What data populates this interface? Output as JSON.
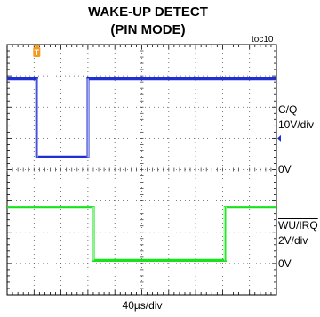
{
  "title_line1": "WAKE-UP DETECT",
  "title_line2": "(PIN MODE)",
  "figure_tag": "toc10",
  "chart_data": {
    "type": "line",
    "title": "WAKE-UP DETECT (PIN MODE)",
    "xlabel": "40µs/div",
    "x_unit": "div",
    "xlim": [
      0,
      10
    ],
    "ylim": [
      0,
      8
    ],
    "grid": true,
    "trigger_marker": "T",
    "series": [
      {
        "name": "C/Q",
        "scale": "10V/div",
        "zero_label": "0V",
        "zero_level_div": 4.4,
        "color": "#1f2fd1",
        "points": [
          [
            0,
            6.9
          ],
          [
            1.1,
            6.9
          ],
          [
            1.1,
            4.4
          ],
          [
            3.0,
            4.4
          ],
          [
            3.0,
            6.9
          ],
          [
            10,
            6.9
          ]
        ]
      },
      {
        "name": "WU/IRQ",
        "name_overline": true,
        "scale": "2V/div",
        "zero_label": "0V",
        "zero_level_div": 1.1,
        "color": "#17e21c",
        "points": [
          [
            0,
            2.8
          ],
          [
            3.2,
            2.8
          ],
          [
            3.2,
            1.1
          ],
          [
            8.1,
            1.1
          ],
          [
            8.1,
            2.8
          ],
          [
            10,
            2.8
          ]
        ]
      }
    ],
    "colors": {
      "trigger": "#f39a1e",
      "ch1_marker": "#1f2fd1"
    }
  }
}
